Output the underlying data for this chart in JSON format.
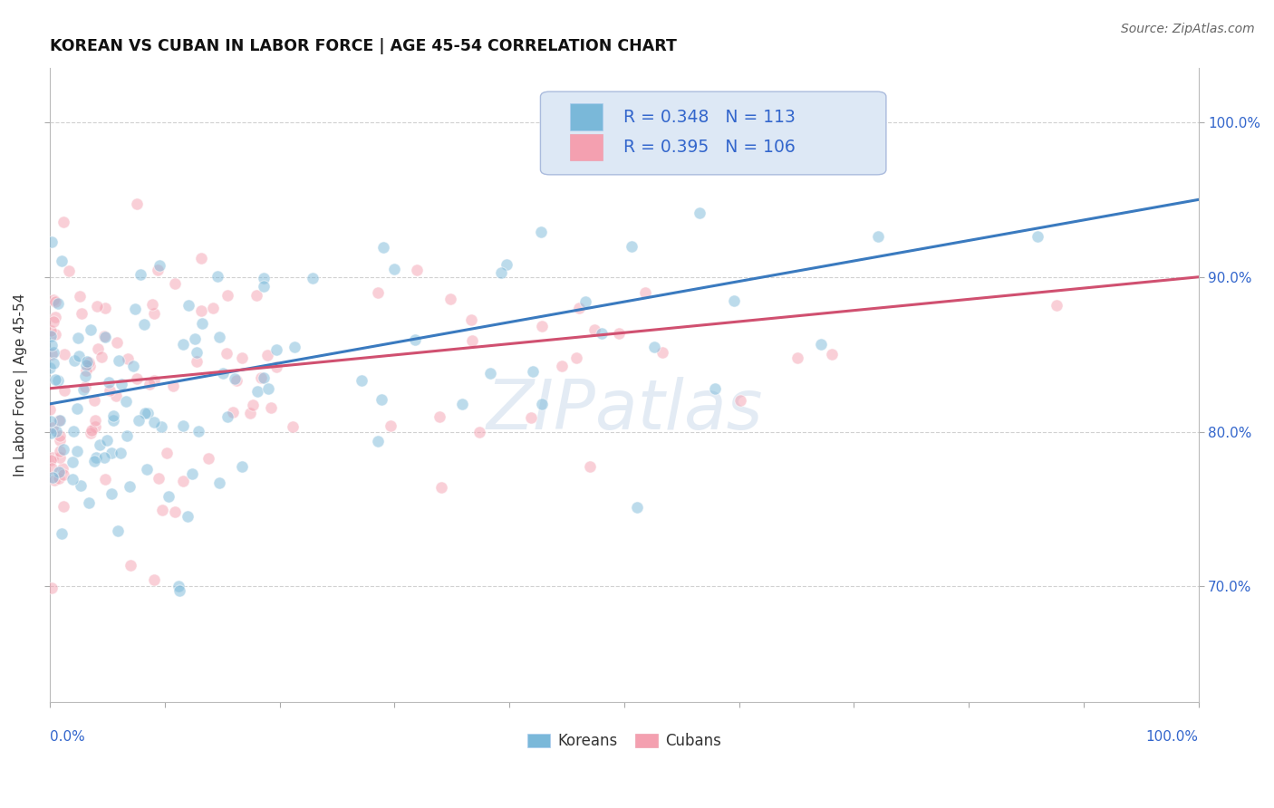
{
  "title": "KOREAN VS CUBAN IN LABOR FORCE | AGE 45-54 CORRELATION CHART",
  "source": "Source: ZipAtlas.com",
  "ylabel": "In Labor Force | Age 45-54",
  "korean_R": 0.348,
  "korean_N": 113,
  "cuban_R": 0.395,
  "cuban_N": 106,
  "korean_color": "#7ab8d9",
  "cuban_color": "#f4a0b0",
  "korean_line_color": "#3a7abf",
  "cuban_line_color": "#d05070",
  "watermark_color": "#c8d8ea",
  "right_ytick_labels": [
    "70.0%",
    "80.0%",
    "90.0%",
    "100.0%"
  ],
  "right_ytick_values": [
    0.7,
    0.8,
    0.9,
    1.0
  ],
  "xmin": 0.0,
  "xmax": 1.0,
  "ymin": 0.625,
  "ymax": 1.035,
  "legend_box_color": "#dde8f5",
  "legend_box_edge": "#aabbdd",
  "legend_text_color": "#3366cc",
  "background_color": "#ffffff",
  "grid_color": "#cccccc",
  "korean_line_y0": 0.818,
  "korean_line_y1": 0.95,
  "cuban_line_y0": 0.828,
  "cuban_line_y1": 0.9
}
